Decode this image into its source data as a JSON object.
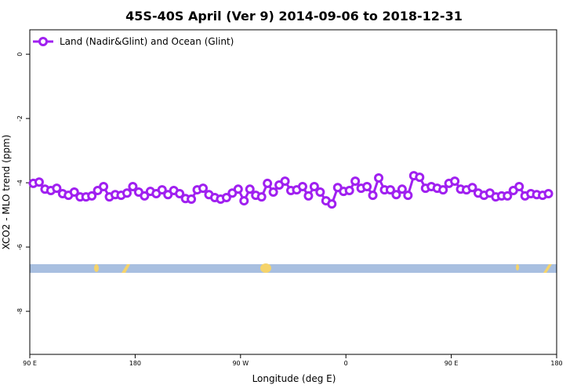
{
  "chart_data": {
    "type": "line",
    "title": "45S-40S April (Ver 9)   2014-09-06 to 2018-12-31",
    "xlabel": "Longitude (deg E)",
    "ylabel": "XCO2 - MLO trend (ppm)",
    "xlim": [
      90,
      540
    ],
    "ylim": [
      -9.34,
      0.76
    ],
    "xticks": [
      {
        "value": 90,
        "label": "90 E"
      },
      180,
      {
        "value": 270,
        "label": "90 W"
      },
      {
        "value": 360,
        "label": "0"
      },
      {
        "value": 450,
        "label": "90 E"
      },
      {
        "value": 540,
        "label": "180"
      }
    ],
    "yticks": [
      0,
      -2,
      -4,
      -6,
      -8
    ],
    "legend_position": "top-left",
    "x": [
      93,
      98,
      103,
      108,
      113,
      118,
      123,
      128,
      133,
      138,
      143,
      148,
      153,
      158,
      163,
      168,
      173,
      178,
      183,
      188,
      193,
      198,
      203,
      208,
      213,
      218,
      223,
      228,
      233,
      238,
      243,
      248,
      253,
      258,
      263,
      268,
      273,
      278,
      283,
      288,
      293,
      298,
      303,
      308,
      313,
      318,
      323,
      328,
      333,
      338,
      343,
      348,
      353,
      358,
      363,
      368,
      373,
      378,
      383,
      388,
      393,
      398,
      403,
      408,
      413,
      418,
      423,
      428,
      433,
      438,
      443,
      448,
      453,
      458,
      463,
      468,
      473,
      478,
      483,
      488,
      493,
      498,
      503,
      508,
      513,
      518,
      523,
      528,
      533
    ],
    "series": [
      {
        "name": "Land (Nadir&Glint) and Ocean (Glint)",
        "color": "#a020f0",
        "values": [
          -4.02,
          -3.98,
          -4.2,
          -4.24,
          -4.17,
          -4.34,
          -4.39,
          -4.29,
          -4.44,
          -4.44,
          -4.41,
          -4.24,
          -4.12,
          -4.44,
          -4.37,
          -4.39,
          -4.32,
          -4.12,
          -4.29,
          -4.41,
          -4.27,
          -4.34,
          -4.22,
          -4.37,
          -4.24,
          -4.34,
          -4.49,
          -4.51,
          -4.22,
          -4.17,
          -4.37,
          -4.46,
          -4.51,
          -4.46,
          -4.32,
          -4.2,
          -4.56,
          -4.2,
          -4.39,
          -4.44,
          -4.02,
          -4.29,
          -4.07,
          -3.95,
          -4.24,
          -4.22,
          -4.12,
          -4.41,
          -4.12,
          -4.29,
          -4.56,
          -4.66,
          -4.15,
          -4.27,
          -4.24,
          -3.95,
          -4.17,
          -4.12,
          -4.39,
          -3.85,
          -4.22,
          -4.22,
          -4.37,
          -4.2,
          -4.39,
          -3.78,
          -3.83,
          -4.17,
          -4.12,
          -4.17,
          -4.22,
          -4.02,
          -3.95,
          -4.2,
          -4.22,
          -4.15,
          -4.32,
          -4.39,
          -4.32,
          -4.44,
          -4.41,
          -4.41,
          -4.24,
          -4.12,
          -4.41,
          -4.34,
          -4.37,
          -4.39,
          -4.34
        ]
      }
    ]
  }
}
